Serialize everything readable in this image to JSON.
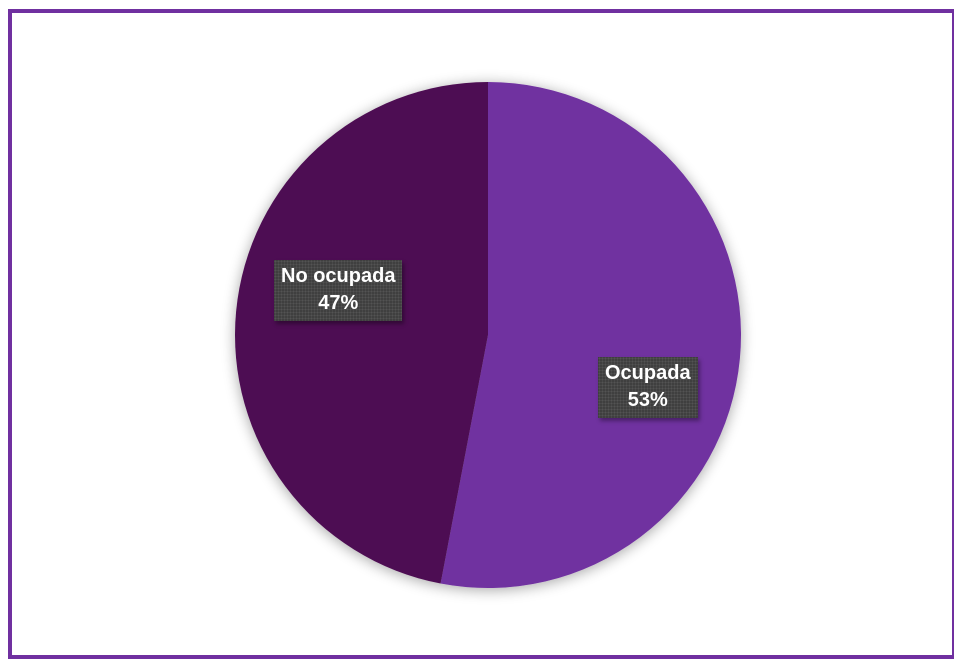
{
  "chart_data": {
    "type": "pie",
    "title": "",
    "start_angle_deg": 0,
    "direction": "clockwise",
    "categories": [
      "Ocupada",
      "No ocupada"
    ],
    "values": [
      53,
      47
    ],
    "labels": [
      {
        "category": "Ocupada",
        "percent": "53%"
      },
      {
        "category": "No ocupada",
        "percent": "47%"
      }
    ],
    "colors": [
      "#7030a0",
      "#4e1052"
    ],
    "label_box_color": "#3f3f3f",
    "legend": "none"
  },
  "frame": {
    "border_color": "#7030a0"
  }
}
